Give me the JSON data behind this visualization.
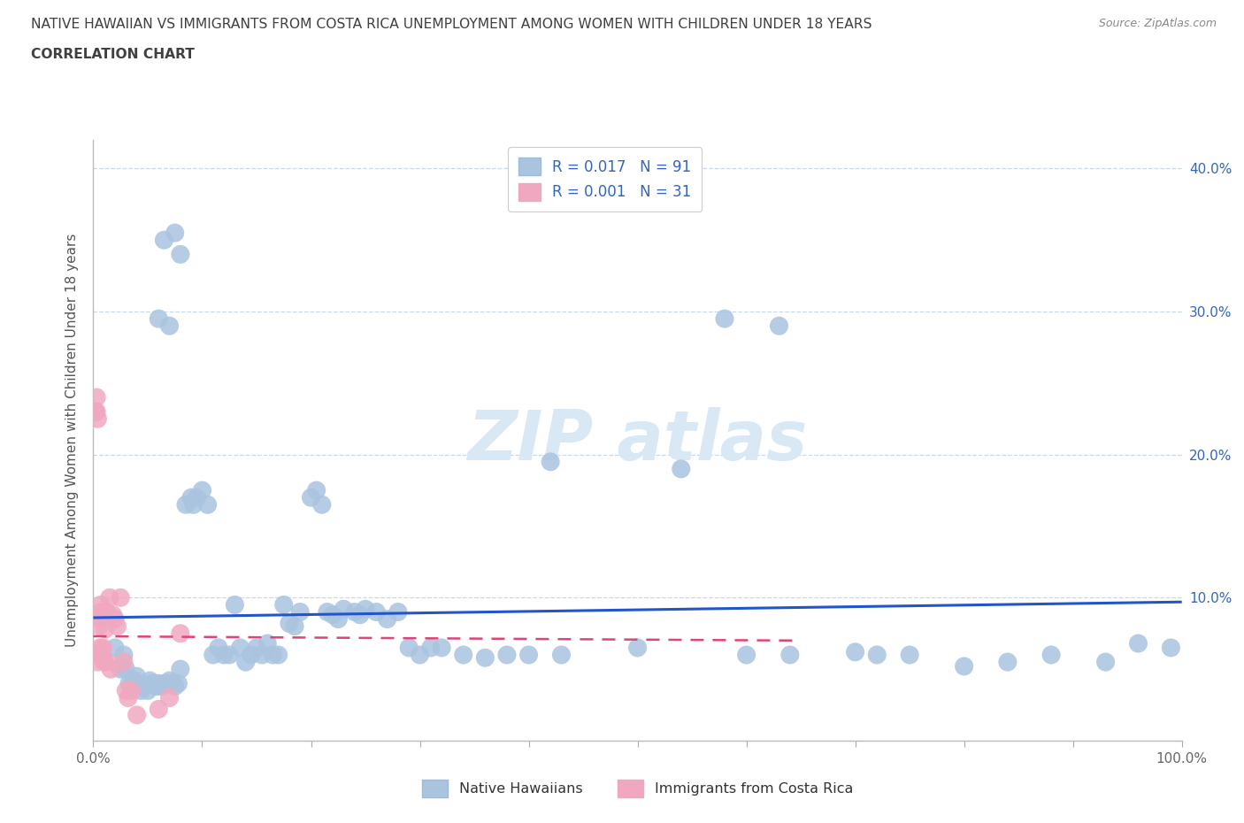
{
  "title_line1": "NATIVE HAWAIIAN VS IMMIGRANTS FROM COSTA RICA UNEMPLOYMENT AMONG WOMEN WITH CHILDREN UNDER 18 YEARS",
  "title_line2": "CORRELATION CHART",
  "source": "Source: ZipAtlas.com",
  "ylabel": "Unemployment Among Women with Children Under 18 years",
  "xlim": [
    0.0,
    1.0
  ],
  "ylim": [
    0.0,
    0.42
  ],
  "x_ticks": [
    0.0,
    0.1,
    0.2,
    0.3,
    0.4,
    0.5,
    0.6,
    0.7,
    0.8,
    0.9,
    1.0
  ],
  "x_tick_labels": [
    "0.0%",
    "",
    "",
    "",
    "",
    "",
    "",
    "",
    "",
    "",
    "100.0%"
  ],
  "y_ticks": [
    0.0,
    0.1,
    0.2,
    0.3,
    0.4
  ],
  "y_tick_labels_right": [
    "",
    "10.0%",
    "20.0%",
    "30.0%",
    "40.0%"
  ],
  "r_blue": 0.017,
  "n_blue": 91,
  "r_pink": 0.001,
  "n_pink": 31,
  "grid_color": "#c8d8e8",
  "background_color": "#ffffff",
  "title_color": "#404040",
  "legend_text_color": "#3366bb",
  "blue_color": "#aac4e0",
  "pink_color": "#f0a8c0",
  "blue_line_color": "#2255cc",
  "pink_line_color": "#dd4477",
  "blue_points_x": [
    0.02,
    0.025,
    0.028,
    0.03,
    0.033,
    0.036,
    0.038,
    0.04,
    0.042,
    0.044,
    0.046,
    0.05,
    0.052,
    0.054,
    0.056,
    0.058,
    0.06,
    0.062,
    0.065,
    0.068,
    0.07,
    0.072,
    0.075,
    0.078,
    0.08,
    0.085,
    0.09,
    0.092,
    0.095,
    0.1,
    0.105,
    0.11,
    0.115,
    0.12,
    0.125,
    0.13,
    0.135,
    0.14,
    0.145,
    0.15,
    0.155,
    0.16,
    0.165,
    0.17,
    0.175,
    0.18,
    0.185,
    0.19,
    0.2,
    0.205,
    0.21,
    0.215,
    0.22,
    0.225,
    0.23,
    0.24,
    0.245,
    0.25,
    0.26,
    0.27,
    0.28,
    0.29,
    0.3,
    0.31,
    0.32,
    0.34,
    0.36,
    0.38,
    0.4,
    0.43,
    0.5,
    0.54,
    0.6,
    0.64,
    0.7,
    0.72,
    0.75,
    0.8,
    0.84,
    0.88,
    0.93,
    0.96,
    0.99,
    0.06,
    0.065,
    0.07,
    0.075,
    0.08,
    0.42,
    0.58,
    0.63
  ],
  "blue_points_y": [
    0.065,
    0.05,
    0.06,
    0.05,
    0.04,
    0.04,
    0.042,
    0.045,
    0.04,
    0.035,
    0.038,
    0.035,
    0.042,
    0.04,
    0.04,
    0.038,
    0.04,
    0.038,
    0.04,
    0.04,
    0.042,
    0.04,
    0.038,
    0.04,
    0.05,
    0.165,
    0.17,
    0.165,
    0.17,
    0.175,
    0.165,
    0.06,
    0.065,
    0.06,
    0.06,
    0.095,
    0.065,
    0.055,
    0.06,
    0.065,
    0.06,
    0.068,
    0.06,
    0.06,
    0.095,
    0.082,
    0.08,
    0.09,
    0.17,
    0.175,
    0.165,
    0.09,
    0.088,
    0.085,
    0.092,
    0.09,
    0.088,
    0.092,
    0.09,
    0.085,
    0.09,
    0.065,
    0.06,
    0.065,
    0.065,
    0.06,
    0.058,
    0.06,
    0.06,
    0.06,
    0.065,
    0.19,
    0.06,
    0.06,
    0.062,
    0.06,
    0.06,
    0.052,
    0.055,
    0.06,
    0.055,
    0.068,
    0.065,
    0.295,
    0.35,
    0.29,
    0.355,
    0.34,
    0.195,
    0.295,
    0.29
  ],
  "pink_points_x": [
    0.002,
    0.003,
    0.003,
    0.004,
    0.004,
    0.005,
    0.005,
    0.006,
    0.006,
    0.007,
    0.007,
    0.008,
    0.009,
    0.01,
    0.011,
    0.012,
    0.013,
    0.015,
    0.016,
    0.018,
    0.02,
    0.022,
    0.025,
    0.028,
    0.03,
    0.032,
    0.035,
    0.04,
    0.06,
    0.07,
    0.08
  ],
  "pink_points_y": [
    0.23,
    0.24,
    0.23,
    0.225,
    0.055,
    0.06,
    0.08,
    0.065,
    0.085,
    0.09,
    0.095,
    0.06,
    0.065,
    0.055,
    0.078,
    0.09,
    0.055,
    0.1,
    0.05,
    0.088,
    0.085,
    0.08,
    0.1,
    0.055,
    0.035,
    0.03,
    0.035,
    0.018,
    0.022,
    0.03,
    0.075
  ],
  "blue_trend_x": [
    0.0,
    1.0
  ],
  "blue_trend_y": [
    0.086,
    0.097
  ],
  "pink_trend_x": [
    0.0,
    0.65
  ],
  "pink_trend_y": [
    0.073,
    0.07
  ]
}
